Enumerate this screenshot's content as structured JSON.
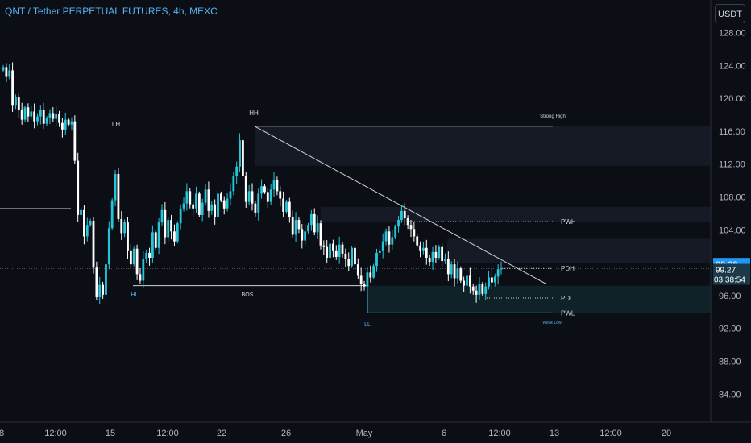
{
  "header": {
    "title": "QNT / Tether PERPETUAL FUTURES, 4h, MEXC"
  },
  "currency_button": "USDT",
  "colors": {
    "background": "#0c0e15",
    "candle_up": "#26c6da",
    "candle_down": "#ffffff",
    "label_blue": "#5ab4f0",
    "price_badge": "#2196f3",
    "price_line": "#4a5060"
  },
  "price_badges": {
    "upper": "99.28",
    "lower_price": "99.27",
    "lower_countdown": "03:38:54"
  },
  "chart_data": {
    "type": "candlestick",
    "ylim": [
      80.5,
      131.5
    ],
    "y_ticks": [
      "128.00",
      "124.00",
      "120.00",
      "116.00",
      "112.00",
      "108.00",
      "104.00",
      "100.00",
      "96.00",
      "92.00",
      "88.00",
      "84.00"
    ],
    "x_ticks": [
      "8",
      "12:00",
      "15",
      "12:00",
      "22",
      "26",
      "May",
      "6",
      "12:00",
      "13",
      "12:00",
      "20"
    ],
    "closes": [
      123.8,
      122.7,
      123.4,
      119.2,
      120.1,
      118.6,
      117.4,
      118.9,
      117.8,
      118.4,
      117.2,
      117.8,
      118.6,
      116.9,
      117.6,
      118.2,
      117.5,
      118.1,
      117.0,
      116.2,
      117.4,
      116.8,
      117.2,
      112.4,
      105.8,
      106.4,
      103.2,
      104.6,
      105.1,
      99.4,
      95.8,
      97.3,
      96.1,
      99.8,
      104.2,
      107.6,
      110.8,
      105.3,
      103.6,
      104.9,
      101.4,
      99.8,
      101.7,
      98.6,
      97.8,
      100.4,
      101.2,
      100.6,
      103.7,
      101.8,
      104.9,
      106.4,
      103.1,
      105.2,
      103.8,
      102.6,
      104.8,
      106.6,
      107.2,
      108.7,
      107.1,
      106.6,
      108.4,
      105.8,
      107.3,
      108.9,
      106.3,
      107.1,
      105.6,
      108.4,
      107.6,
      106.6,
      107.8,
      108.7,
      110.6,
      111.7,
      114.9,
      110.6,
      107.4,
      108.7,
      107.2,
      106.1,
      108.4,
      109.3,
      108.6,
      107.4,
      108.9,
      110.1,
      108.7,
      107.8,
      106.2,
      107.4,
      105.6,
      103.4,
      105.2,
      104.1,
      102.7,
      103.8,
      104.6,
      105.9,
      103.7,
      104.8,
      102.1,
      101.9,
      100.6,
      102.3,
      101.4,
      100.7,
      102.2,
      101.1,
      100.4,
      99.6,
      101.8,
      99.8,
      98.4,
      97.4,
      97.1,
      98.8,
      98.2,
      99.6,
      101.2,
      101.4,
      102.6,
      103.8,
      102.2,
      103.1,
      104.4,
      105.2,
      106.3,
      105.4,
      104.6,
      104.1,
      103.2,
      102.1,
      101.4,
      101.8,
      100.6,
      100.1,
      101.3,
      100.6,
      101.9,
      100.2,
      100.4,
      98.6,
      99.8,
      98.1,
      99.3,
      97.8,
      97.2,
      98.4,
      97.1,
      96.6,
      96.1,
      97.4,
      96.2,
      97.1,
      98.2,
      97.6,
      98.3,
      99.2,
      99.27
    ],
    "levels": [
      {
        "label": "PWH",
        "price": 105.0
      },
      {
        "label": "PDH",
        "price": 99.3
      },
      {
        "label": "PDL",
        "price": 95.7
      },
      {
        "label": "PWL",
        "price": 93.9
      }
    ],
    "annotations": [
      {
        "text": "LH",
        "price": 116.0
      },
      {
        "text": "HH",
        "price": 118.0
      },
      {
        "text": "Strong High",
        "price": 116.7
      },
      {
        "text": "HL",
        "price": 95.5
      },
      {
        "text": "BOS",
        "price": 95.5
      },
      {
        "text": "LL",
        "price": 91.6
      },
      {
        "text": "Weak Low",
        "price": 92.6
      }
    ],
    "zones": [
      {
        "from": 111.8,
        "to": 116.6
      },
      {
        "from": 105.0,
        "to": 106.8
      },
      {
        "from": 100.0,
        "to": 102.9
      },
      {
        "from": 93.9,
        "to": 97.2
      }
    ],
    "trendline": {
      "from_price": 116.6,
      "to_price": 97.4
    },
    "bos_level": 97.2
  }
}
